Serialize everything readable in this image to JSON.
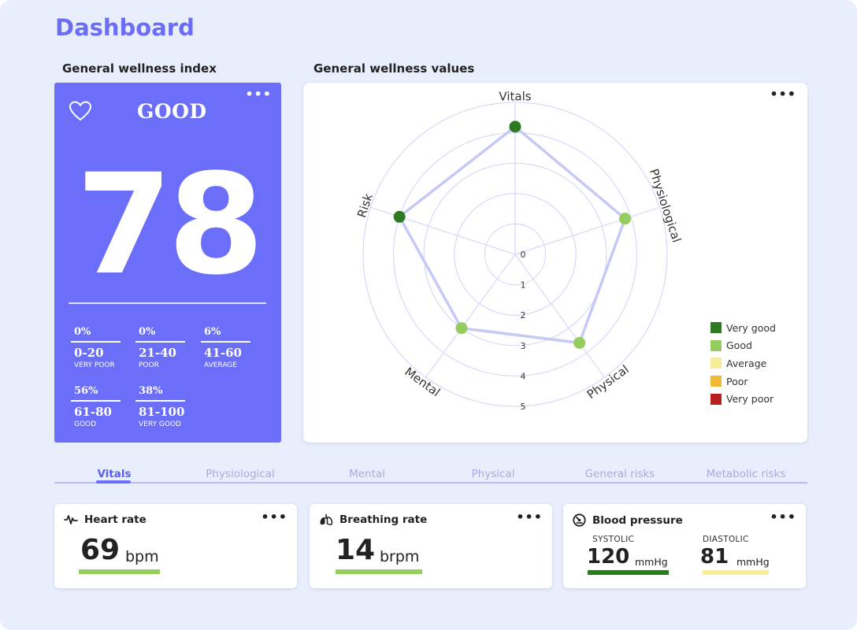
{
  "page": {
    "title": "Dashboard"
  },
  "wellness_index": {
    "section_title": "General wellness index",
    "status": "GOOD",
    "score": "78",
    "menu": "•••",
    "icon": "heart-outline-icon",
    "ranges": [
      {
        "pct": "0%",
        "range": "0-20",
        "label": "VERY POOR"
      },
      {
        "pct": "0%",
        "range": "21-40",
        "label": "POOR"
      },
      {
        "pct": "6%",
        "range": "41-60",
        "label": "AVERAGE"
      },
      {
        "pct": "56%",
        "range": "61-80",
        "label": "GOOD"
      },
      {
        "pct": "38%",
        "range": "81-100",
        "label": "VERY GOOD"
      }
    ]
  },
  "wellness_values": {
    "section_title": "General wellness values",
    "menu": "•••",
    "chart_data": {
      "type": "radar",
      "axes": [
        "Vitals",
        "Physiological",
        "Physical",
        "Mental",
        "Risk"
      ],
      "scale_ticks": [
        "0",
        "1",
        "2",
        "3",
        "4",
        "5"
      ],
      "range": [
        0,
        5
      ],
      "values": [
        4.2,
        3.8,
        3.6,
        3.0,
        4.0
      ],
      "point_categories": [
        "Very good",
        "Good",
        "Good",
        "Good",
        "Very good"
      ],
      "legend": [
        {
          "label": "Very good",
          "color": "#2e7a22"
        },
        {
          "label": "Good",
          "color": "#94cc5e"
        },
        {
          "label": "Average",
          "color": "#f6ec9a"
        },
        {
          "label": "Poor",
          "color": "#f1b93a"
        },
        {
          "label": "Very poor",
          "color": "#b82020"
        }
      ]
    }
  },
  "tabs": [
    {
      "label": "Vitals",
      "active": true
    },
    {
      "label": "Physiological",
      "active": false
    },
    {
      "label": "Mental",
      "active": false
    },
    {
      "label": "Physical",
      "active": false
    },
    {
      "label": "General risks",
      "active": false
    },
    {
      "label": "Metabolic risks",
      "active": false
    }
  ],
  "metrics": {
    "heart_rate": {
      "title": "Heart rate",
      "value": "69",
      "unit": "bpm",
      "icon": "heart-pulse-icon",
      "bar_color": "#94cc5e",
      "menu": "•••"
    },
    "breathing_rate": {
      "title": "Breathing rate",
      "value": "14",
      "unit": "brpm",
      "icon": "lungs-icon",
      "bar_color": "#94cc5e",
      "menu": "•••"
    },
    "blood_pressure": {
      "title": "Blood pressure",
      "icon": "gauge-icon",
      "menu": "•••",
      "systolic": {
        "label": "SYSTOLIC",
        "value": "120",
        "unit": "mmHg",
        "bar_color": "#2e7a22"
      },
      "diastolic": {
        "label": "DIASTOLIC",
        "value": "81",
        "unit": "mmHg",
        "bar_color": "#f6ec9a"
      }
    }
  }
}
